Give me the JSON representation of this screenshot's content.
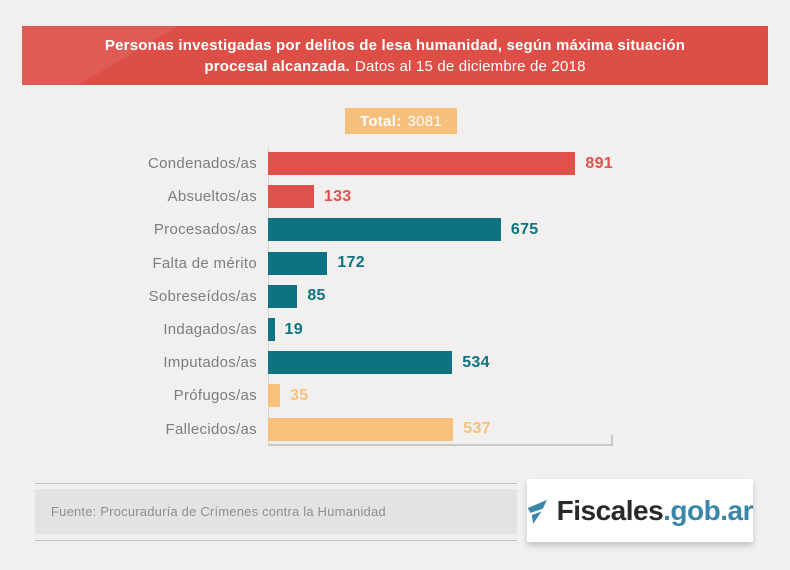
{
  "page": {
    "background": "#f1f0ef"
  },
  "header": {
    "background": "#dd4e47",
    "title_bold_line1": "Personas investigadas por delitos de lesa humanidad, según máxima situación",
    "title_bold_line2": "procesal alcanzada.",
    "title_regular_line2": "Datos al 15 de diciembre de 2018"
  },
  "total_badge": {
    "label": "Total:",
    "value": "3081",
    "background": "#f6bf7c"
  },
  "chart_data": {
    "type": "bar",
    "orientation": "horizontal",
    "categories": [
      "Condenados/as",
      "Absueltos/as",
      "Procesados/as",
      "Falta de mérito",
      "Sobreseídos/as",
      "Indagados/as",
      "Imputados/as",
      "Prófugos/as",
      "Fallecidos/as"
    ],
    "values": [
      891,
      133,
      675,
      172,
      85,
      19,
      534,
      35,
      537
    ],
    "colors": [
      "#e0514b",
      "#e0514b",
      "#0e7280",
      "#0e7280",
      "#0e7280",
      "#0e7280",
      "#0e7280",
      "#f8c17b",
      "#f8c17b"
    ],
    "total": 3081,
    "xlim": [
      0,
      1000
    ],
    "grid": false,
    "legend": false,
    "value_labels": "end-of-bar",
    "palette": {
      "red": "#e0514b",
      "teal": "#0e7280",
      "orange": "#f8c17b"
    }
  },
  "footer": {
    "source": "Fuente: Procuraduría de Crímenes contra la Humanidad"
  },
  "logo": {
    "text_dark": "Fiscales",
    "text_blue": ".gob.ar",
    "flag_color": "#3a86ab"
  }
}
